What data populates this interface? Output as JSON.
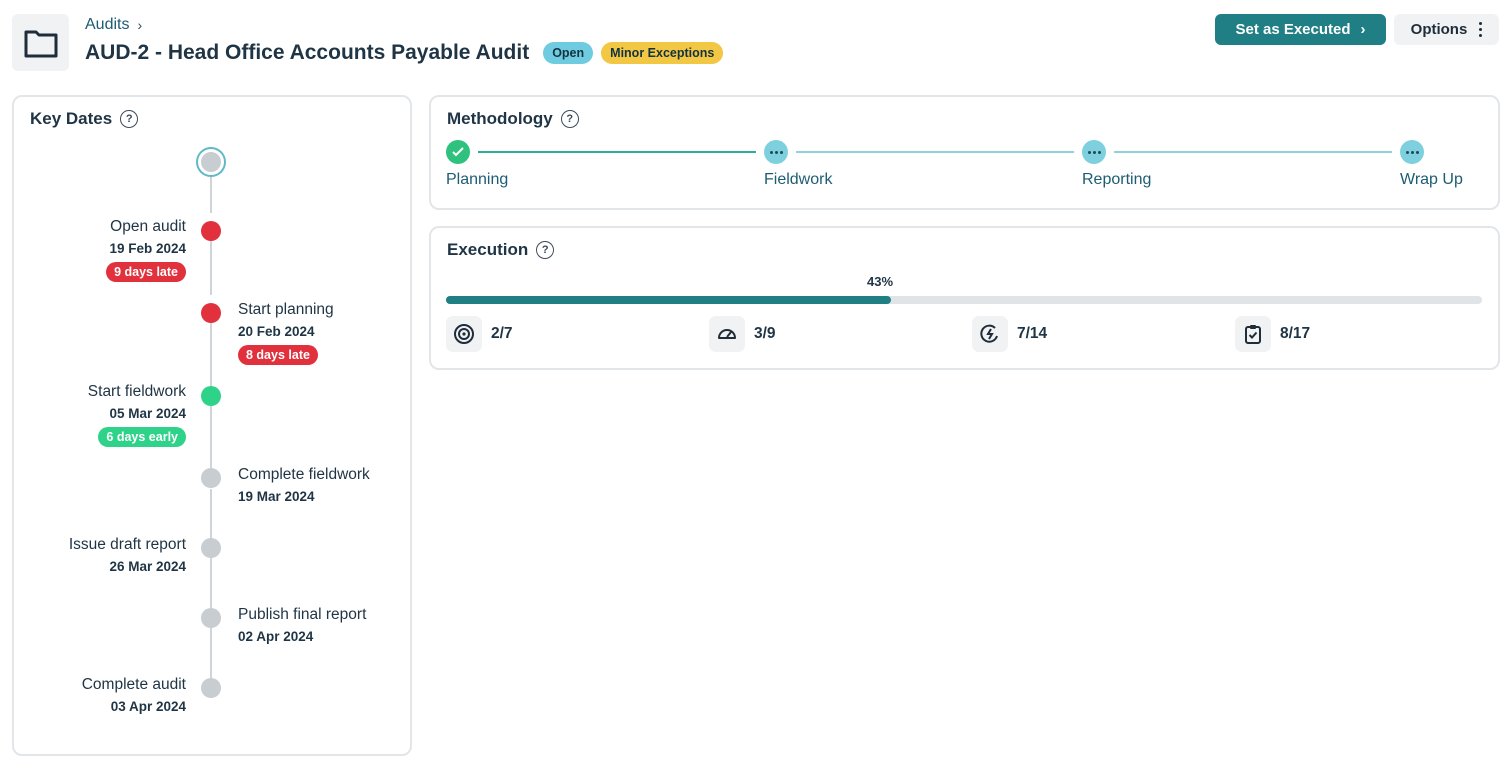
{
  "header": {
    "breadcrumb": "Audits",
    "title": "AUD-2 - Head Office Accounts Payable Audit",
    "status_badge": "Open",
    "opinion_badge": "Minor Exceptions",
    "primary_button": "Set as Executed",
    "options_button": "Options",
    "icon": "folder-icon"
  },
  "key_dates": {
    "title": "Key Dates",
    "events": [
      {
        "name": "Open audit",
        "date": "19 Feb 2024",
        "tag": "9 days late",
        "status": "late"
      },
      {
        "name": "Start planning",
        "date": "20 Feb 2024",
        "tag": "8 days late",
        "status": "late"
      },
      {
        "name": "Start fieldwork",
        "date": "05 Mar 2024",
        "tag": "6 days early",
        "status": "early"
      },
      {
        "name": "Complete fieldwork",
        "date": "19 Mar 2024",
        "status": "pending"
      },
      {
        "name": "Issue draft report",
        "date": "26 Mar 2024",
        "status": "pending"
      },
      {
        "name": "Publish final report",
        "date": "02 Apr 2024",
        "status": "pending"
      },
      {
        "name": "Complete audit",
        "date": "03 Apr 2024",
        "status": "pending"
      }
    ]
  },
  "methodology": {
    "title": "Methodology",
    "steps": [
      {
        "label": "Planning",
        "state": "done"
      },
      {
        "label": "Fieldwork",
        "state": "pending"
      },
      {
        "label": "Reporting",
        "state": "pending"
      },
      {
        "label": "Wrap Up",
        "state": "pending"
      }
    ]
  },
  "execution": {
    "title": "Execution",
    "progress_label": "43%",
    "progress": 0.43,
    "stats": [
      {
        "icon": "target-icon",
        "value": "2/7"
      },
      {
        "icon": "gauge-icon",
        "value": "3/9"
      },
      {
        "icon": "cycle-icon",
        "value": "7/14"
      },
      {
        "icon": "clipboard-check-icon",
        "value": "8/17"
      }
    ]
  },
  "colors": {
    "accent": "#1f7f85",
    "late": "#e0313c",
    "early": "#2ed389",
    "open_badge": "#6fcbe0",
    "minor_badge": "#f2c744"
  }
}
